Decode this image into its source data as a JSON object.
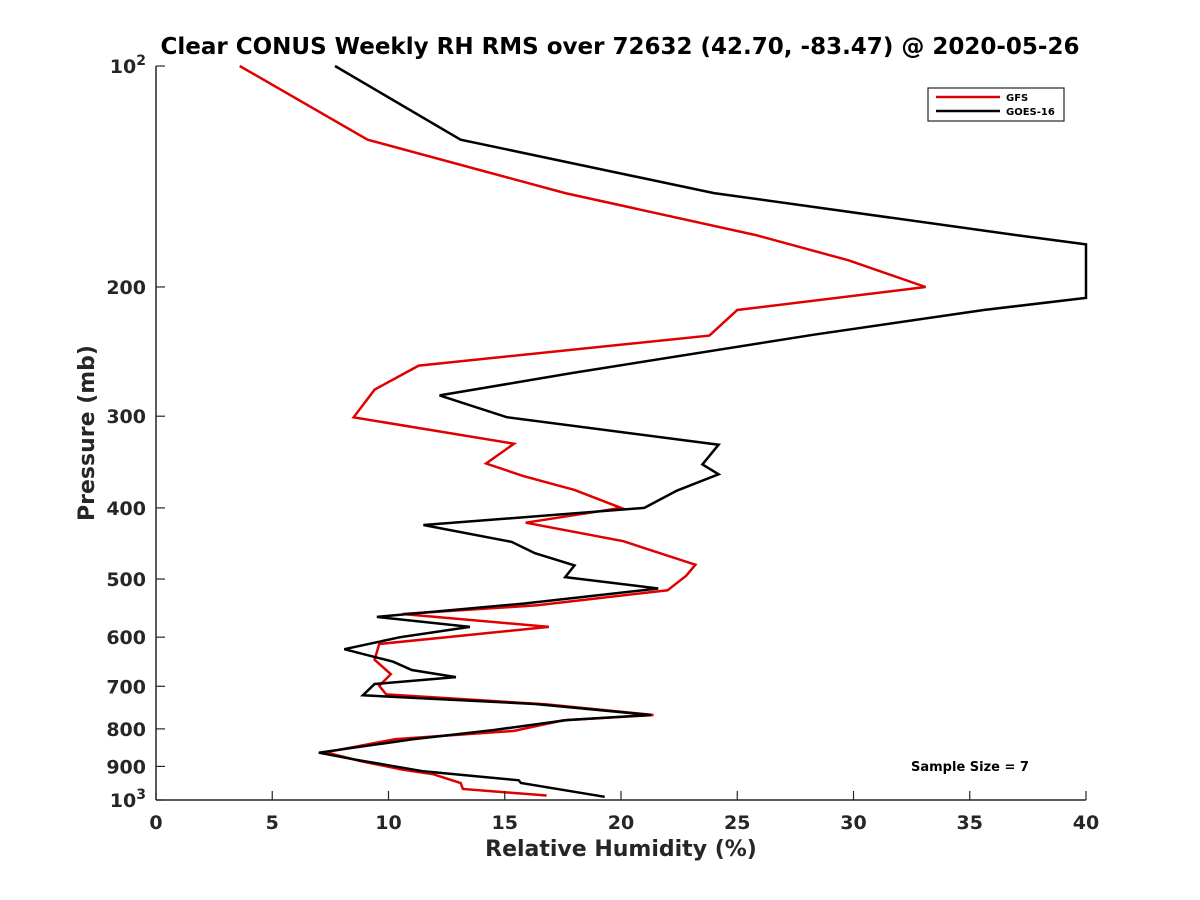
{
  "chart_data": {
    "type": "line",
    "title": "Clear CONUS Weekly RH RMS over 72632 (42.70, -83.47) @ 2020-05-26",
    "xlabel": "Relative Humidity (%)",
    "ylabel": "Pressure (mb)",
    "xlim": [
      0,
      40
    ],
    "ylim": [
      100,
      1000
    ],
    "y_scale": "log",
    "y_reversed": true,
    "x_ticks": [
      "0",
      "5",
      "10",
      "15",
      "20",
      "25",
      "30",
      "35",
      "40"
    ],
    "y_ticks": [
      {
        "value": 100,
        "base": "10",
        "exp": "2"
      },
      {
        "value": 200,
        "label": "200"
      },
      {
        "value": 300,
        "label": "300"
      },
      {
        "value": 400,
        "label": "400"
      },
      {
        "value": 500,
        "label": "500"
      },
      {
        "value": 600,
        "label": "600"
      },
      {
        "value": 700,
        "label": "700"
      },
      {
        "value": 800,
        "label": "800"
      },
      {
        "value": 900,
        "label": "900"
      },
      {
        "value": 1000,
        "base": "10",
        "exp": "3"
      }
    ],
    "legend_position": "top-right",
    "grid": false,
    "annotation": "Sample Size = 7",
    "series": [
      {
        "name": "GFS",
        "color": "#e00000",
        "points": [
          [
            3.6,
            100
          ],
          [
            9.1,
            126
          ],
          [
            17.6,
            149
          ],
          [
            25.8,
            170
          ],
          [
            29.8,
            184
          ],
          [
            33.1,
            200
          ],
          [
            25.0,
            215
          ],
          [
            23.8,
            233
          ],
          [
            11.3,
            256
          ],
          [
            9.4,
            276
          ],
          [
            8.5,
            301
          ],
          [
            15.4,
            327
          ],
          [
            14.2,
            348
          ],
          [
            15.8,
            362
          ],
          [
            18.0,
            378
          ],
          [
            20.0,
            400
          ],
          [
            15.9,
            419
          ],
          [
            20.1,
            444
          ],
          [
            23.2,
            478
          ],
          [
            22.8,
            495
          ],
          [
            22.0,
            518
          ],
          [
            16.4,
            543
          ],
          [
            10.6,
            558
          ],
          [
            16.9,
            581
          ],
          [
            9.6,
            613
          ],
          [
            9.4,
            644
          ],
          [
            10.1,
            674
          ],
          [
            9.6,
            699
          ],
          [
            9.9,
            718
          ],
          [
            16.8,
            741
          ],
          [
            21.4,
            766
          ],
          [
            17.5,
            779
          ],
          [
            15.4,
            805
          ],
          [
            10.3,
            826
          ],
          [
            7.3,
            861
          ],
          [
            8.8,
            885
          ],
          [
            10.6,
            909
          ],
          [
            11.9,
            922
          ],
          [
            13.1,
            948
          ],
          [
            13.2,
            966
          ],
          [
            16.8,
            986
          ]
        ]
      },
      {
        "name": "GOES-16",
        "color": "#000000",
        "points": [
          [
            7.7,
            100
          ],
          [
            13.1,
            126
          ],
          [
            24.0,
            149
          ],
          [
            37.0,
            170
          ],
          [
            40.0,
            175
          ],
          [
            40.0,
            207
          ],
          [
            35.6,
            215
          ],
          [
            28.4,
            232
          ],
          [
            17.9,
            262
          ],
          [
            12.2,
            281
          ],
          [
            15.1,
            301
          ],
          [
            24.2,
            328
          ],
          [
            23.5,
            349
          ],
          [
            24.2,
            360
          ],
          [
            22.4,
            379
          ],
          [
            21.0,
            400
          ],
          [
            11.5,
            422
          ],
          [
            15.3,
            445
          ],
          [
            16.3,
            461
          ],
          [
            18.0,
            479
          ],
          [
            17.6,
            497
          ],
          [
            21.6,
            515
          ],
          [
            15.8,
            540
          ],
          [
            9.5,
            563
          ],
          [
            13.5,
            581
          ],
          [
            10.5,
            600
          ],
          [
            8.1,
            623
          ],
          [
            10.2,
            648
          ],
          [
            11.0,
            665
          ],
          [
            12.9,
            680
          ],
          [
            9.4,
            695
          ],
          [
            8.9,
            720
          ],
          [
            16.3,
            740
          ],
          [
            21.3,
            766
          ],
          [
            17.7,
            778
          ],
          [
            14.5,
            803
          ],
          [
            11.0,
            827
          ],
          [
            7.0,
            862
          ],
          [
            8.5,
            880
          ],
          [
            11.5,
            914
          ],
          [
            15.6,
            940
          ],
          [
            15.7,
            948
          ],
          [
            19.3,
            990
          ]
        ]
      }
    ]
  }
}
